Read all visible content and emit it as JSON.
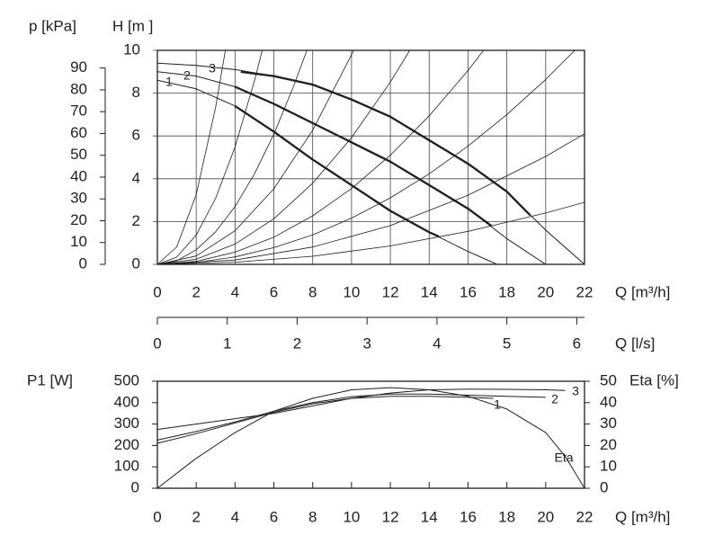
{
  "chart_data": [
    {
      "type": "line",
      "ylabel": "H [m ]",
      "y2label": "p [kPa]",
      "xlabel": "Q [m³/h]",
      "x2label": "Q [l/s]",
      "xlim": [
        0,
        22
      ],
      "xticks": [
        0,
        2,
        4,
        6,
        8,
        10,
        12,
        14,
        16,
        18,
        20,
        22
      ],
      "ylim": [
        0,
        10
      ],
      "yticks": [
        0,
        2,
        4,
        6,
        8,
        10
      ],
      "y2lim": [
        0,
        98.1
      ],
      "y2ticks": [
        0,
        10,
        20,
        30,
        40,
        50,
        60,
        70,
        80,
        90
      ],
      "x2lim": [
        0,
        6.111
      ],
      "x2ticks": [
        0,
        1,
        2,
        3,
        4,
        5,
        6
      ],
      "grid": true,
      "color": "#1e1e1e",
      "series": [
        {
          "name": "1",
          "x": [
            0,
            2,
            4,
            6,
            8,
            10,
            12,
            14,
            16,
            17.5
          ],
          "values": [
            8.6,
            8.2,
            7.4,
            6.2,
            4.9,
            3.7,
            2.5,
            1.5,
            0.6,
            0
          ]
        },
        {
          "name": "2",
          "x": [
            0,
            2,
            4,
            6,
            8,
            10,
            12,
            14,
            16,
            18,
            20
          ],
          "values": [
            9.0,
            8.8,
            8.3,
            7.5,
            6.6,
            5.7,
            4.8,
            3.7,
            2.6,
            1.2,
            0
          ]
        },
        {
          "name": "3",
          "x": [
            0,
            2,
            4,
            6,
            8,
            10,
            12,
            14,
            16,
            18,
            20,
            22
          ],
          "values": [
            9.4,
            9.3,
            9.1,
            8.8,
            8.4,
            7.7,
            6.9,
            5.8,
            4.7,
            3.4,
            1.6,
            0
          ]
        }
      ],
      "bold_segments": [
        {
          "x": [
            4,
            6,
            8,
            10,
            12,
            14,
            14.5
          ],
          "values": [
            7.4,
            6.2,
            4.9,
            3.7,
            2.5,
            1.5,
            1.3
          ]
        },
        {
          "x": [
            4,
            6,
            8,
            10,
            12,
            14,
            16,
            17.2
          ],
          "values": [
            8.3,
            7.5,
            6.6,
            5.7,
            4.8,
            3.7,
            2.6,
            1.8
          ]
        },
        {
          "x": [
            4.3,
            6,
            8,
            10,
            12,
            14,
            16,
            18,
            19.2
          ],
          "values": [
            9.0,
            8.8,
            8.4,
            7.7,
            6.9,
            5.8,
            4.7,
            3.4,
            2.3
          ]
        }
      ],
      "system_curves": [
        {
          "x": [
            0,
            1,
            2,
            3,
            3.5
          ],
          "values": [
            0,
            0.82,
            3.26,
            7.34,
            10
          ]
        },
        {
          "x": [
            0,
            1,
            2,
            3,
            4,
            5,
            5.4
          ],
          "values": [
            0,
            0.34,
            1.37,
            3.09,
            5.49,
            8.58,
            10
          ]
        },
        {
          "x": [
            0,
            1,
            2,
            3,
            4,
            5,
            6,
            7,
            7.7
          ],
          "values": [
            0,
            0.17,
            0.68,
            1.52,
            2.7,
            4.23,
            6.08,
            8.28,
            10
          ]
        },
        {
          "x": [
            0,
            2,
            4,
            6,
            8,
            10,
            10.1
          ],
          "values": [
            0,
            0.39,
            1.57,
            3.53,
            6.27,
            9.8,
            10
          ]
        },
        {
          "x": [
            0,
            2,
            4,
            6,
            8,
            10,
            12,
            13
          ],
          "values": [
            0,
            0.24,
            0.95,
            2.13,
            3.79,
            5.92,
            8.52,
            10
          ]
        },
        {
          "x": [
            0,
            2,
            4,
            6,
            8,
            10,
            12,
            14,
            16,
            16.8
          ],
          "values": [
            0,
            0.14,
            0.57,
            1.27,
            2.27,
            3.54,
            5.1,
            6.94,
            9.06,
            10
          ]
        },
        {
          "x": [
            0,
            2,
            4,
            6,
            8,
            10,
            12,
            14,
            16,
            18,
            20,
            21.5
          ],
          "values": [
            0,
            0.09,
            0.35,
            0.78,
            1.38,
            2.16,
            3.11,
            4.23,
            5.53,
            7.0,
            8.64,
            10
          ]
        },
        {
          "x": [
            0,
            4,
            8,
            12,
            16,
            20,
            22
          ],
          "values": [
            0,
            0.2,
            0.81,
            1.81,
            3.23,
            5.04,
            6.1
          ]
        },
        {
          "x": [
            0,
            4,
            8,
            12,
            16,
            20,
            22
          ],
          "values": [
            0,
            0.1,
            0.38,
            0.86,
            1.54,
            2.4,
            2.9
          ]
        }
      ]
    },
    {
      "type": "line",
      "xlabel": "Q [m³/h]",
      "ylabel": "P1 [W]",
      "y2label": "Eta [%]",
      "xlim": [
        0,
        22
      ],
      "xticks": [
        0,
        2,
        4,
        6,
        8,
        10,
        12,
        14,
        16,
        18,
        20,
        22
      ],
      "ylim": [
        0,
        500
      ],
      "yticks": [
        0,
        100,
        200,
        300,
        400,
        500
      ],
      "y2lim": [
        0,
        50
      ],
      "y2ticks": [
        0,
        10,
        20,
        30,
        40,
        50
      ],
      "grid": false,
      "color": "#1e1e1e",
      "series": [
        {
          "name": "1",
          "x": [
            0,
            2,
            4,
            6,
            8,
            10,
            12,
            14,
            16,
            17.3
          ],
          "values": [
            210,
            255,
            305,
            355,
            395,
            420,
            430,
            430,
            425,
            420
          ]
        },
        {
          "name": "2",
          "x": [
            0,
            2,
            4,
            6,
            8,
            10,
            12,
            14,
            16,
            18,
            20
          ],
          "values": [
            225,
            265,
            310,
            360,
            400,
            428,
            440,
            440,
            435,
            430,
            425
          ]
        },
        {
          "name": "3",
          "x": [
            0,
            2,
            4,
            6,
            8,
            10,
            12,
            14,
            16,
            18,
            20,
            21
          ],
          "values": [
            275,
            300,
            325,
            350,
            385,
            420,
            445,
            460,
            463,
            462,
            460,
            457
          ]
        },
        {
          "name": "Eta",
          "axis": "y2",
          "x": [
            0,
            2,
            4,
            6,
            8,
            10,
            12,
            14,
            16,
            18,
            20,
            21,
            22
          ],
          "values": [
            0,
            14,
            26,
            36,
            42,
            46,
            47,
            46,
            43,
            37,
            26,
            15,
            0
          ]
        }
      ]
    }
  ]
}
